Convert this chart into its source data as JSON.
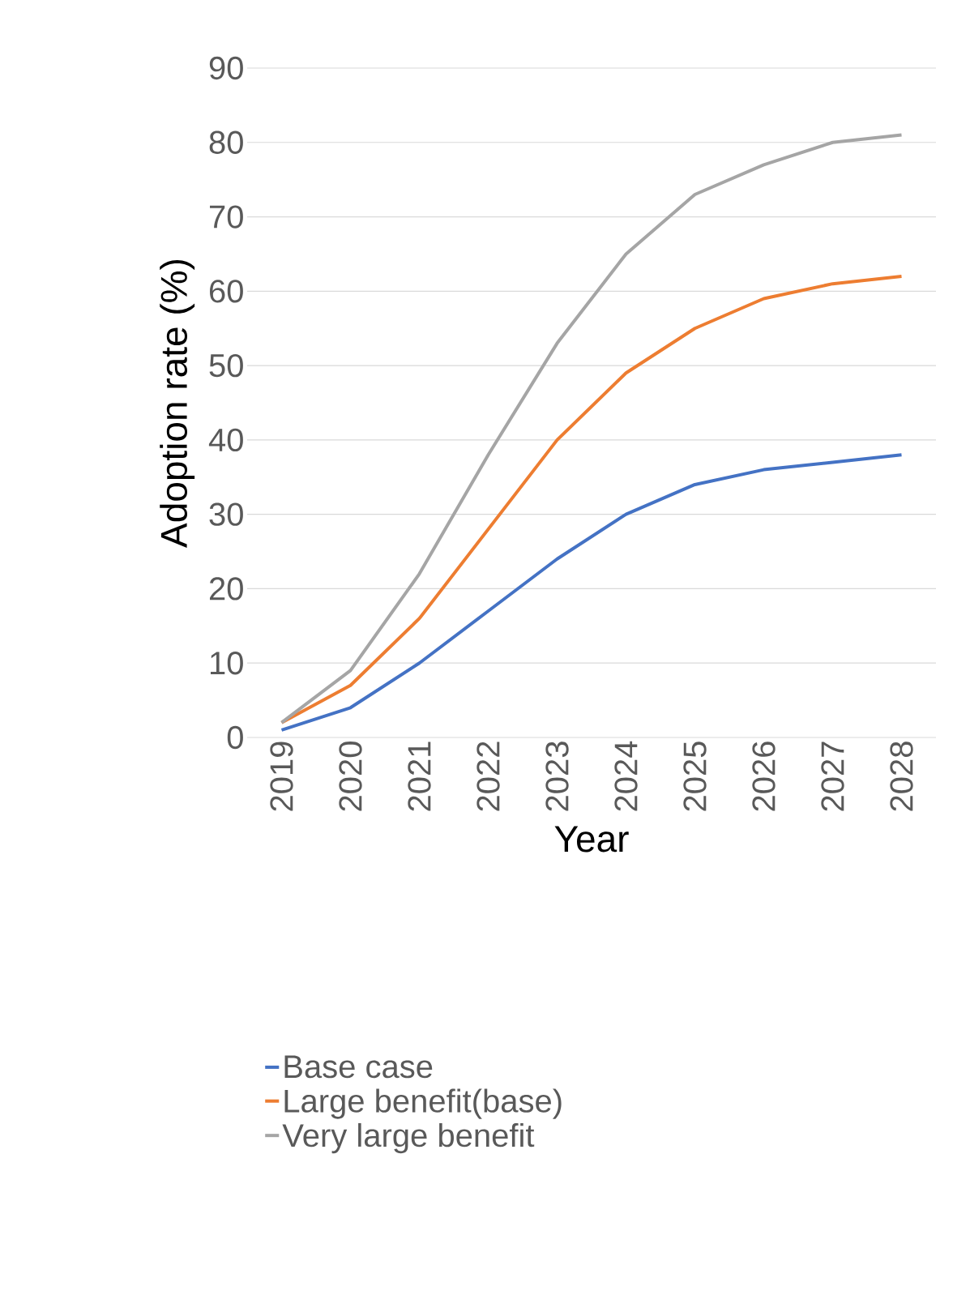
{
  "chart_data": {
    "type": "line",
    "xlabel": "Year",
    "ylabel": "Adoption rate (%)",
    "categories": [
      "2019",
      "2020",
      "2021",
      "2022",
      "2023",
      "2024",
      "2025",
      "2026",
      "2027",
      "2028"
    ],
    "series": [
      {
        "name": "Base case",
        "color": "#4472c4",
        "values": [
          1,
          4,
          10,
          17,
          24,
          30,
          34,
          36,
          37,
          38
        ]
      },
      {
        "name": "Large benefit(base)",
        "color": "#ed7d31",
        "values": [
          2,
          7,
          16,
          28,
          40,
          49,
          55,
          59,
          61,
          62
        ]
      },
      {
        "name": "Very large benefit",
        "color": "#a5a5a5",
        "values": [
          2,
          9,
          22,
          38,
          53,
          65,
          73,
          77,
          80,
          81
        ]
      }
    ],
    "ylim": [
      0,
      90
    ],
    "yticks": [
      0,
      10,
      20,
      30,
      40,
      50,
      60,
      70,
      80,
      90
    ],
    "grid": "y",
    "legend": "bottom",
    "marker": "none",
    "line_style": "solid"
  }
}
